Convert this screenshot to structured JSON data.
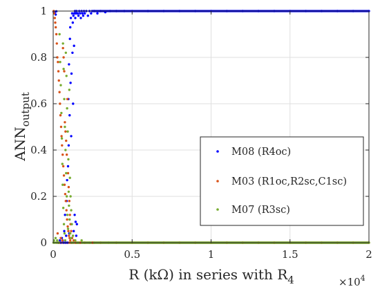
{
  "chart_data": {
    "type": "scatter",
    "title": "",
    "xlabel": "R (kΩ) in series with R",
    "xlabel_sub": "4",
    "ylabel": "ANN",
    "ylabel_sub": "output",
    "x_multiplier": "×10",
    "x_multiplier_exp": "4",
    "xlim": [
      0,
      2
    ],
    "ylim": [
      0,
      1
    ],
    "x_ticks": [
      0,
      0.5,
      1,
      1.5,
      2
    ],
    "x_tick_labels": [
      "0",
      "0.5",
      "1",
      "1.5",
      "2"
    ],
    "y_ticks": [
      0,
      0.2,
      0.4,
      0.6,
      0.8,
      1
    ],
    "y_tick_labels": [
      "0",
      "0.2",
      "0.4",
      "0.6",
      "0.8",
      "1"
    ],
    "grid": true,
    "legend_position": "center-right",
    "series": [
      {
        "name": "M08 (R4oc)",
        "color": "#0000ff",
        "points": [
          [
            0.002,
            0.998
          ],
          [
            0.005,
            0.995
          ],
          [
            0.009,
            0.99
          ],
          [
            0.012,
            0.997
          ],
          [
            0.016,
            0.985
          ],
          [
            0.02,
            0.999
          ],
          [
            0.035,
            0.0
          ],
          [
            0.042,
            0.01
          ],
          [
            0.048,
            0.0
          ],
          [
            0.055,
            0.02
          ],
          [
            0.06,
            0.01
          ],
          [
            0.065,
            0.0
          ],
          [
            0.07,
            0.05
          ],
          [
            0.075,
            0.12
          ],
          [
            0.078,
            0.0
          ],
          [
            0.082,
            0.03
          ],
          [
            0.085,
            0.18
          ],
          [
            0.088,
            0.27
          ],
          [
            0.09,
            0.0
          ],
          [
            0.094,
            0.33
          ],
          [
            0.096,
            0.62
          ],
          [
            0.098,
            0.42
          ],
          [
            0.1,
            0.77
          ],
          [
            0.102,
            0.04
          ],
          [
            0.104,
            0.55
          ],
          [
            0.106,
            0.88
          ],
          [
            0.108,
            0.93
          ],
          [
            0.11,
            0.69
          ],
          [
            0.112,
            0.97
          ],
          [
            0.114,
            0.46
          ],
          [
            0.116,
            0.73
          ],
          [
            0.118,
            0.02
          ],
          [
            0.12,
            0.99
          ],
          [
            0.122,
            0.82
          ],
          [
            0.124,
            0.95
          ],
          [
            0.126,
            0.6
          ],
          [
            0.128,
            0.98
          ],
          [
            0.13,
            0.05
          ],
          [
            0.132,
            0.85
          ],
          [
            0.134,
            0.99
          ],
          [
            0.136,
            0.12
          ],
          [
            0.138,
            1.0
          ],
          [
            0.14,
            0.97
          ],
          [
            0.142,
            0.09
          ],
          [
            0.144,
            0.99
          ],
          [
            0.146,
            0.03
          ],
          [
            0.148,
            1.0
          ],
          [
            0.15,
            0.08
          ],
          [
            0.155,
            0.99
          ],
          [
            0.16,
            0.98
          ],
          [
            0.165,
            1.0
          ],
          [
            0.17,
            0.99
          ],
          [
            0.175,
            0.97
          ],
          [
            0.18,
            1.0
          ],
          [
            0.185,
            0.99
          ],
          [
            0.19,
            0.98
          ],
          [
            0.195,
            1.0
          ],
          [
            0.2,
            0.99
          ],
          [
            0.21,
            1.0
          ],
          [
            0.22,
            0.98
          ],
          [
            0.23,
            1.0
          ],
          [
            0.24,
            0.99
          ],
          [
            0.26,
            1.0
          ],
          [
            0.28,
            0.99
          ],
          [
            0.3,
            1.0
          ],
          [
            0.33,
            0.995
          ],
          [
            0.36,
            1.0
          ],
          [
            0.4,
            1.0
          ],
          [
            0.45,
            1.0
          ],
          [
            0.5,
            1.0
          ],
          [
            0.6,
            1.0
          ],
          [
            0.7,
            1.0
          ],
          [
            0.8,
            1.0
          ],
          [
            0.9,
            1.0
          ],
          [
            1.0,
            1.0
          ],
          [
            1.1,
            1.0
          ],
          [
            1.2,
            1.0
          ],
          [
            1.3,
            1.0
          ],
          [
            1.4,
            1.0
          ],
          [
            1.5,
            1.0
          ],
          [
            1.6,
            1.0
          ],
          [
            1.7,
            1.0
          ],
          [
            1.8,
            1.0
          ],
          [
            1.9,
            1.0
          ],
          [
            2.0,
            1.0
          ]
        ]
      },
      {
        "name": "M03 (R1oc,R2sc,C1sc)",
        "color": "#d95319",
        "points": [
          [
            0.003,
            1.0
          ],
          [
            0.006,
            0.99
          ],
          [
            0.01,
            0.97
          ],
          [
            0.013,
            0.95
          ],
          [
            0.016,
            0.93
          ],
          [
            0.02,
            0.9
          ],
          [
            0.023,
            0.86
          ],
          [
            0.026,
            0.8
          ],
          [
            0.028,
            0.04
          ],
          [
            0.03,
            0.78
          ],
          [
            0.033,
            0.74
          ],
          [
            0.036,
            0.7
          ],
          [
            0.038,
            0.0
          ],
          [
            0.04,
            0.65
          ],
          [
            0.043,
            0.6
          ],
          [
            0.046,
            0.55
          ],
          [
            0.048,
            0.02
          ],
          [
            0.05,
            0.5
          ],
          [
            0.053,
            0.46
          ],
          [
            0.056,
            0.42
          ],
          [
            0.058,
            0.01
          ],
          [
            0.06,
            0.38
          ],
          [
            0.062,
            0.84
          ],
          [
            0.064,
            0.33
          ],
          [
            0.066,
            0.8
          ],
          [
            0.068,
            0.29
          ],
          [
            0.07,
            0.74
          ],
          [
            0.072,
            0.25
          ],
          [
            0.074,
            0.52
          ],
          [
            0.076,
            0.21
          ],
          [
            0.078,
            0.48
          ],
          [
            0.08,
            0.18
          ],
          [
            0.082,
            0.44
          ],
          [
            0.084,
            0.14
          ],
          [
            0.086,
            0.38
          ],
          [
            0.088,
            0.1
          ],
          [
            0.09,
            0.62
          ],
          [
            0.092,
            0.07
          ],
          [
            0.094,
            0.3
          ],
          [
            0.096,
            0.05
          ],
          [
            0.098,
            0.24
          ],
          [
            0.1,
            0.03
          ],
          [
            0.102,
            0.18
          ],
          [
            0.104,
            0.02
          ],
          [
            0.106,
            0.12
          ],
          [
            0.108,
            0.01
          ],
          [
            0.11,
            0.08
          ],
          [
            0.112,
            0.0
          ],
          [
            0.114,
            0.05
          ],
          [
            0.116,
            0.0
          ],
          [
            0.12,
            0.02
          ],
          [
            0.125,
            0.0
          ],
          [
            0.13,
            0.01
          ],
          [
            0.14,
            0.0
          ],
          [
            0.15,
            0.0
          ],
          [
            0.17,
            0.0
          ],
          [
            0.2,
            0.0
          ],
          [
            0.25,
            0.0
          ],
          [
            0.3,
            0.0
          ],
          [
            0.4,
            0.0
          ],
          [
            0.5,
            0.0
          ],
          [
            0.6,
            0.0
          ],
          [
            0.7,
            0.0
          ],
          [
            0.8,
            0.0
          ],
          [
            0.9,
            0.0
          ],
          [
            1.0,
            0.0
          ],
          [
            1.1,
            0.0
          ],
          [
            1.2,
            0.0
          ],
          [
            1.3,
            0.0
          ],
          [
            1.4,
            0.0
          ],
          [
            1.5,
            0.0
          ],
          [
            1.6,
            0.0
          ],
          [
            1.7,
            0.0
          ],
          [
            1.8,
            0.0
          ],
          [
            1.9,
            0.0
          ],
          [
            2.0,
            0.0
          ]
        ]
      },
      {
        "name": "M07 (R3sc)",
        "color": "#77ac30",
        "points": [
          [
            0.002,
            0.0
          ],
          [
            0.005,
            0.01
          ],
          [
            0.01,
            0.0
          ],
          [
            0.015,
            0.02
          ],
          [
            0.02,
            0.0
          ],
          [
            0.025,
            0.01
          ],
          [
            0.03,
            0.0
          ],
          [
            0.035,
            0.0
          ],
          [
            0.04,
            0.9
          ],
          [
            0.044,
            0.78
          ],
          [
            0.048,
            0.68
          ],
          [
            0.052,
            0.56
          ],
          [
            0.055,
            0.45
          ],
          [
            0.058,
            0.34
          ],
          [
            0.06,
            0.25
          ],
          [
            0.062,
            0.86
          ],
          [
            0.064,
            0.15
          ],
          [
            0.066,
            0.75
          ],
          [
            0.068,
            0.08
          ],
          [
            0.07,
            0.62
          ],
          [
            0.072,
            0.04
          ],
          [
            0.074,
            0.5
          ],
          [
            0.076,
            0.01
          ],
          [
            0.078,
            0.4
          ],
          [
            0.08,
            0.82
          ],
          [
            0.082,
            0.3
          ],
          [
            0.084,
            0.72
          ],
          [
            0.086,
            0.2
          ],
          [
            0.088,
            0.58
          ],
          [
            0.09,
            0.12
          ],
          [
            0.092,
            0.48
          ],
          [
            0.094,
            0.06
          ],
          [
            0.096,
            0.36
          ],
          [
            0.098,
            0.22
          ],
          [
            0.1,
            0.16
          ],
          [
            0.102,
            0.66
          ],
          [
            0.104,
            0.1
          ],
          [
            0.106,
            0.28
          ],
          [
            0.108,
            0.04
          ],
          [
            0.11,
            0.2
          ],
          [
            0.112,
            0.02
          ],
          [
            0.114,
            0.14
          ],
          [
            0.116,
            0.0
          ],
          [
            0.118,
            0.08
          ],
          [
            0.12,
            0.0
          ],
          [
            0.125,
            0.03
          ],
          [
            0.13,
            0.0
          ],
          [
            0.14,
            0.01
          ],
          [
            0.15,
            0.0
          ],
          [
            0.16,
            0.0
          ],
          [
            0.18,
            0.01
          ],
          [
            0.2,
            0.0
          ],
          [
            0.23,
            0.0
          ],
          [
            0.26,
            0.0
          ],
          [
            0.3,
            0.0
          ],
          [
            0.35,
            0.0
          ],
          [
            0.4,
            0.0
          ],
          [
            0.5,
            0.0
          ],
          [
            0.6,
            0.0
          ],
          [
            0.7,
            0.0
          ],
          [
            0.8,
            0.0
          ],
          [
            0.9,
            0.0
          ],
          [
            1.0,
            0.0
          ],
          [
            1.1,
            0.0
          ],
          [
            1.2,
            0.0
          ],
          [
            1.3,
            0.0
          ],
          [
            1.4,
            0.0
          ],
          [
            1.5,
            0.0
          ],
          [
            1.6,
            0.0
          ],
          [
            1.7,
            0.0
          ],
          [
            1.8,
            0.0
          ],
          [
            1.9,
            0.0
          ],
          [
            2.0,
            0.0
          ]
        ]
      }
    ]
  }
}
